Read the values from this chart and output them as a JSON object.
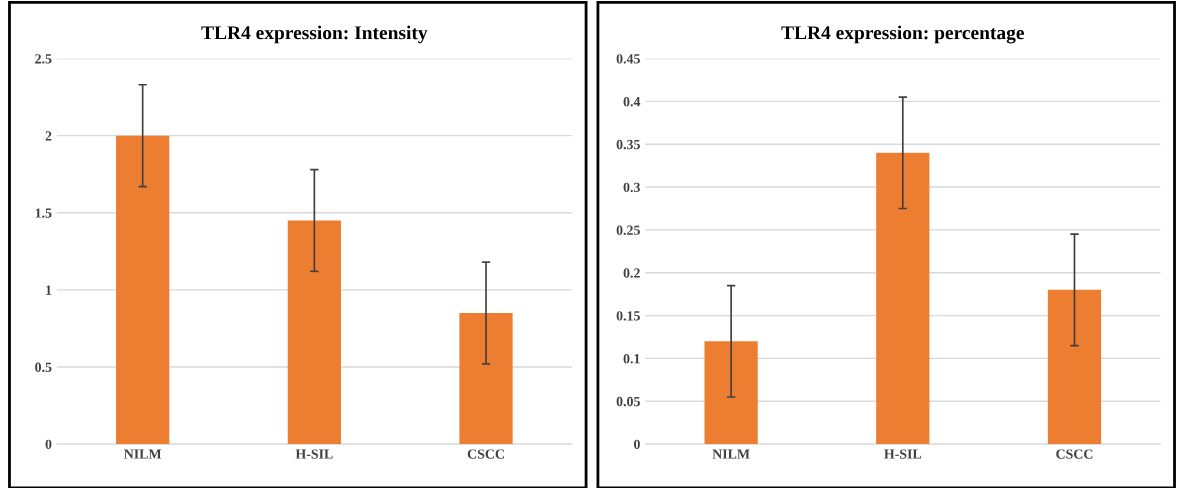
{
  "chart_data": [
    {
      "type": "bar",
      "title": "TLR4 expression: Intensity",
      "categories": [
        "NILM",
        "H-SIL",
        "CSCC"
      ],
      "values": [
        2.0,
        1.45,
        0.85
      ],
      "errors": [
        0.33,
        0.33,
        0.33
      ],
      "color": "#ed7d31",
      "ylim": [
        0,
        2.5
      ],
      "yticks": [
        0,
        0.5,
        1,
        1.5,
        2,
        2.5
      ],
      "grid": "y",
      "legend": false
    },
    {
      "type": "bar",
      "title": "TLR4 expression: percentage",
      "categories": [
        "NILM",
        "H-SIL",
        "CSCC"
      ],
      "values": [
        0.12,
        0.34,
        0.18
      ],
      "errors": [
        0.065,
        0.065,
        0.065
      ],
      "color": "#ed7d31",
      "ylim": [
        0,
        0.45
      ],
      "yticks": [
        0,
        0.05,
        0.1,
        0.15,
        0.2,
        0.25,
        0.3,
        0.35,
        0.4,
        0.45
      ],
      "grid": "y",
      "legend": false
    }
  ]
}
